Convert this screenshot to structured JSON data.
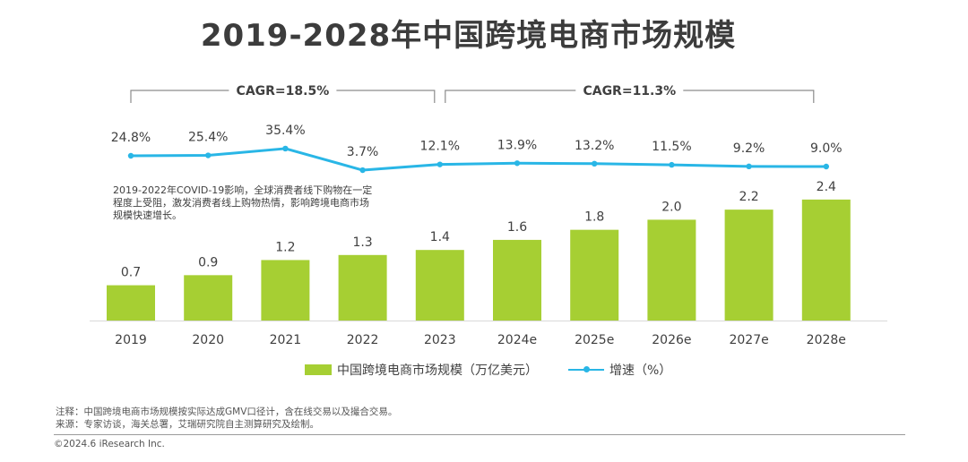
{
  "title": "2019-2028年中国跨境电商市场规模",
  "chart_data": {
    "type": "bar+line",
    "title": "2019-2028年中国跨境电商市场规模",
    "categories": [
      "2019",
      "2020",
      "2021",
      "2022",
      "2023",
      "2024e",
      "2025e",
      "2026e",
      "2027e",
      "2028e"
    ],
    "series": [
      {
        "name": "中国跨境电商市场规模（万亿美元）",
        "type": "bar",
        "values": [
          0.7,
          0.9,
          1.2,
          1.3,
          1.4,
          1.6,
          1.8,
          2.0,
          2.2,
          2.4
        ],
        "labels": [
          "0.7",
          "0.9",
          "1.2",
          "1.3",
          "1.4",
          "1.6",
          "1.8",
          "2.0",
          "2.2",
          "2.4"
        ]
      },
      {
        "name": "增速（%）",
        "type": "line",
        "values": [
          24.8,
          25.4,
          35.4,
          3.7,
          12.1,
          13.9,
          13.2,
          11.5,
          9.2,
          9.0
        ],
        "labels": [
          "24.8%",
          "25.4%",
          "35.4%",
          "3.7%",
          "12.1%",
          "13.9%",
          "13.2%",
          "11.5%",
          "9.2%",
          "9.0%"
        ]
      }
    ],
    "cagr": [
      {
        "label": "CAGR=18.5%",
        "from": "2019",
        "to": "2023"
      },
      {
        "label": "CAGR=11.3%",
        "from": "2023",
        "to": "2028e"
      }
    ],
    "annotation": "2019-2022年COVID-19影响，全球消费者线下购物在一定程度上受阻，激发消费者线上购物热情，影响跨境电商市场规模快速增长。",
    "legend": [
      "中国跨境电商市场规模（万亿美元）",
      "增速（%）"
    ]
  },
  "colors": {
    "bar": "#a6cf33",
    "line": "#29b6e6",
    "bracket": "#8c8c8c"
  },
  "footer": {
    "note": "注释：中国跨境电商市场规模按实际达成GMV口径计，含在线交易以及撮合交易。",
    "source": "来源：专家访谈，海关总署，艾瑞研究院自主测算研究及绘制。",
    "copyright": "©2024.6 iResearch Inc."
  }
}
